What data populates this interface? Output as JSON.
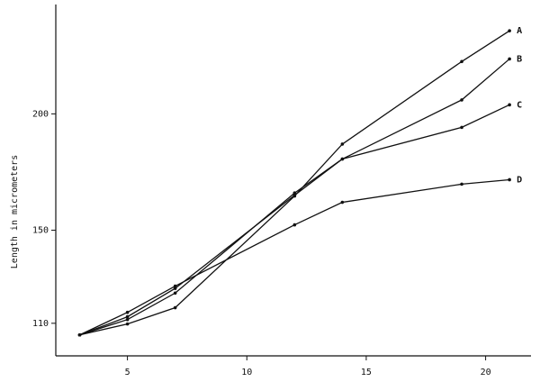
{
  "chart_data": {
    "type": "line",
    "y_label": "Length in micrometers",
    "x": [
      3,
      5,
      7,
      12,
      14,
      19,
      21
    ],
    "series": [
      {
        "name": "A",
        "color": "#111111",
        "values": [
          105,
          109.7,
          116.7,
          164.7,
          187,
          222.5,
          235.7
        ]
      },
      {
        "name": "B",
        "color": "#111111",
        "values": [
          105,
          111.6,
          123,
          166,
          180.6,
          206,
          223.6
        ]
      },
      {
        "name": "C",
        "color": "#111111",
        "values": [
          105,
          112.8,
          125,
          165,
          180.6,
          194.2,
          203.9
        ]
      },
      {
        "name": "D",
        "color": "#111111",
        "values": [
          105,
          114.7,
          126,
          152.3,
          162,
          169.8,
          171.7
        ]
      }
    ],
    "xlim": [
      2,
      21.9
    ],
    "xticks": [
      5,
      10,
      15,
      20
    ],
    "ylim": [
      96,
      247
    ],
    "yticks": [
      110,
      150,
      200
    ],
    "grid": false
  }
}
